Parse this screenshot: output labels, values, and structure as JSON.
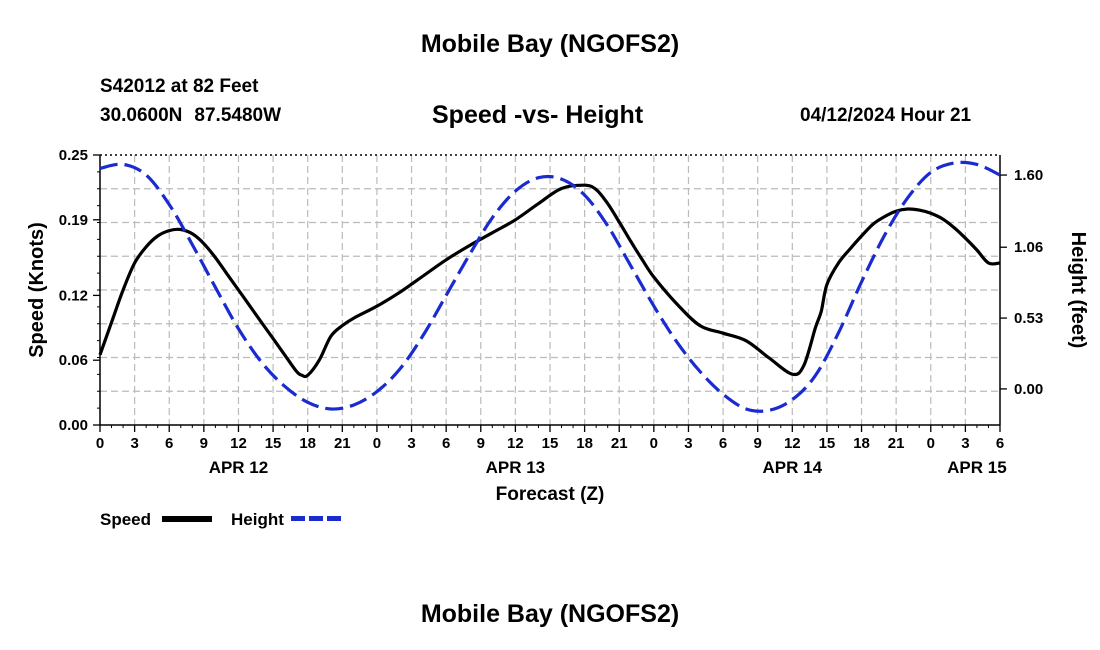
{
  "header": {
    "title": "Mobile Bay (NGOFS2)",
    "station": "S42012 at 82 Feet",
    "lat": "30.0600N",
    "lon": "87.5480W",
    "subtitle": "Speed -vs- Height",
    "timestamp": "04/12/2024 Hour 21"
  },
  "footer": {
    "title": "Mobile Bay (NGOFS2)"
  },
  "legend": {
    "speed_label": "Speed",
    "height_label": "Height"
  },
  "colors": {
    "speed": "#000000",
    "height": "#1a2bd0",
    "grid": "#bbbbbb"
  },
  "chart_data": {
    "type": "line",
    "title": "Speed -vs- Height",
    "xlabel": "Forecast (Z)",
    "ylabel": "Speed (Knots)",
    "y2label": "Height (feet)",
    "x_unit": "hours since 00Z Apr 12",
    "xlim": [
      0,
      78
    ],
    "ylim": [
      0,
      0.25
    ],
    "y2lim": [
      -0.27,
      1.75
    ],
    "x_ticks": [
      0,
      3,
      6,
      9,
      12,
      15,
      18,
      21,
      24,
      27,
      30,
      33,
      36,
      39,
      42,
      45,
      48,
      51,
      54,
      57,
      60,
      63,
      66,
      69,
      72,
      75,
      78
    ],
    "x_tick_labels": [
      "0",
      "3",
      "6",
      "9",
      "12",
      "15",
      "18",
      "21",
      "0",
      "3",
      "6",
      "9",
      "12",
      "15",
      "18",
      "21",
      "0",
      "3",
      "6",
      "9",
      "12",
      "15",
      "18",
      "21",
      "0",
      "3",
      "6"
    ],
    "date_labels": [
      {
        "x": 12,
        "label": "APR 12"
      },
      {
        "x": 36,
        "label": "APR 13"
      },
      {
        "x": 60,
        "label": "APR 14"
      },
      {
        "x": 76,
        "label": "APR 15"
      }
    ],
    "y_ticks": [
      0.0,
      0.06,
      0.12,
      0.19,
      0.25
    ],
    "y_tick_labels": [
      "0.00",
      "0.06",
      "0.12",
      "0.19",
      "0.25"
    ],
    "y2_ticks": [
      0.0,
      0.53,
      1.06,
      1.6
    ],
    "y2_tick_labels": [
      "0.00",
      "0.53",
      "1.06",
      "1.60"
    ],
    "grid": true,
    "series": [
      {
        "name": "Speed",
        "axis": "left",
        "style": "solid",
        "x": [
          0,
          1,
          2,
          3,
          4,
          5,
          6,
          7,
          8,
          9,
          10,
          11,
          12,
          13,
          14,
          15,
          16,
          17,
          17.5,
          18,
          19,
          20,
          21,
          22,
          24,
          26,
          28,
          30,
          32,
          34,
          36,
          38,
          40,
          42,
          43,
          44,
          45,
          46,
          47,
          48,
          50,
          52,
          54,
          56,
          58,
          60,
          61,
          62,
          62.5,
          63,
          64,
          65,
          66,
          67,
          68,
          69,
          70,
          71,
          72,
          73,
          74,
          75,
          76,
          77,
          78
        ],
        "y": [
          0.065,
          0.095,
          0.125,
          0.15,
          0.165,
          0.175,
          0.18,
          0.181,
          0.177,
          0.168,
          0.155,
          0.14,
          0.125,
          0.11,
          0.095,
          0.08,
          0.065,
          0.05,
          0.046,
          0.046,
          0.06,
          0.082,
          0.092,
          0.099,
          0.11,
          0.123,
          0.138,
          0.153,
          0.166,
          0.178,
          0.19,
          0.205,
          0.219,
          0.222,
          0.218,
          0.205,
          0.188,
          0.17,
          0.153,
          0.137,
          0.112,
          0.092,
          0.085,
          0.078,
          0.062,
          0.047,
          0.055,
          0.09,
          0.105,
          0.13,
          0.15,
          0.163,
          0.175,
          0.186,
          0.193,
          0.198,
          0.2,
          0.199,
          0.196,
          0.191,
          0.183,
          0.173,
          0.162,
          0.15,
          0.15
        ]
      },
      {
        "name": "Height",
        "axis": "right",
        "style": "dashed",
        "x": [
          0,
          2,
          4,
          6,
          8,
          10,
          12,
          14,
          16,
          18,
          20,
          22,
          24,
          26,
          28,
          30,
          32,
          34,
          36,
          38,
          40,
          42,
          44,
          46,
          48,
          50,
          52,
          54,
          56,
          58,
          60,
          62,
          64,
          66,
          68,
          70,
          72,
          74,
          76,
          78
        ],
        "y": [
          1.65,
          1.68,
          1.6,
          1.38,
          1.08,
          0.76,
          0.45,
          0.2,
          0.02,
          -0.1,
          -0.15,
          -0.12,
          -0.02,
          0.15,
          0.4,
          0.7,
          1.0,
          1.28,
          1.48,
          1.58,
          1.57,
          1.45,
          1.22,
          0.92,
          0.62,
          0.35,
          0.13,
          -0.04,
          -0.15,
          -0.16,
          -0.08,
          0.1,
          0.42,
          0.8,
          1.15,
          1.43,
          1.62,
          1.69,
          1.68,
          1.6
        ]
      }
    ]
  }
}
